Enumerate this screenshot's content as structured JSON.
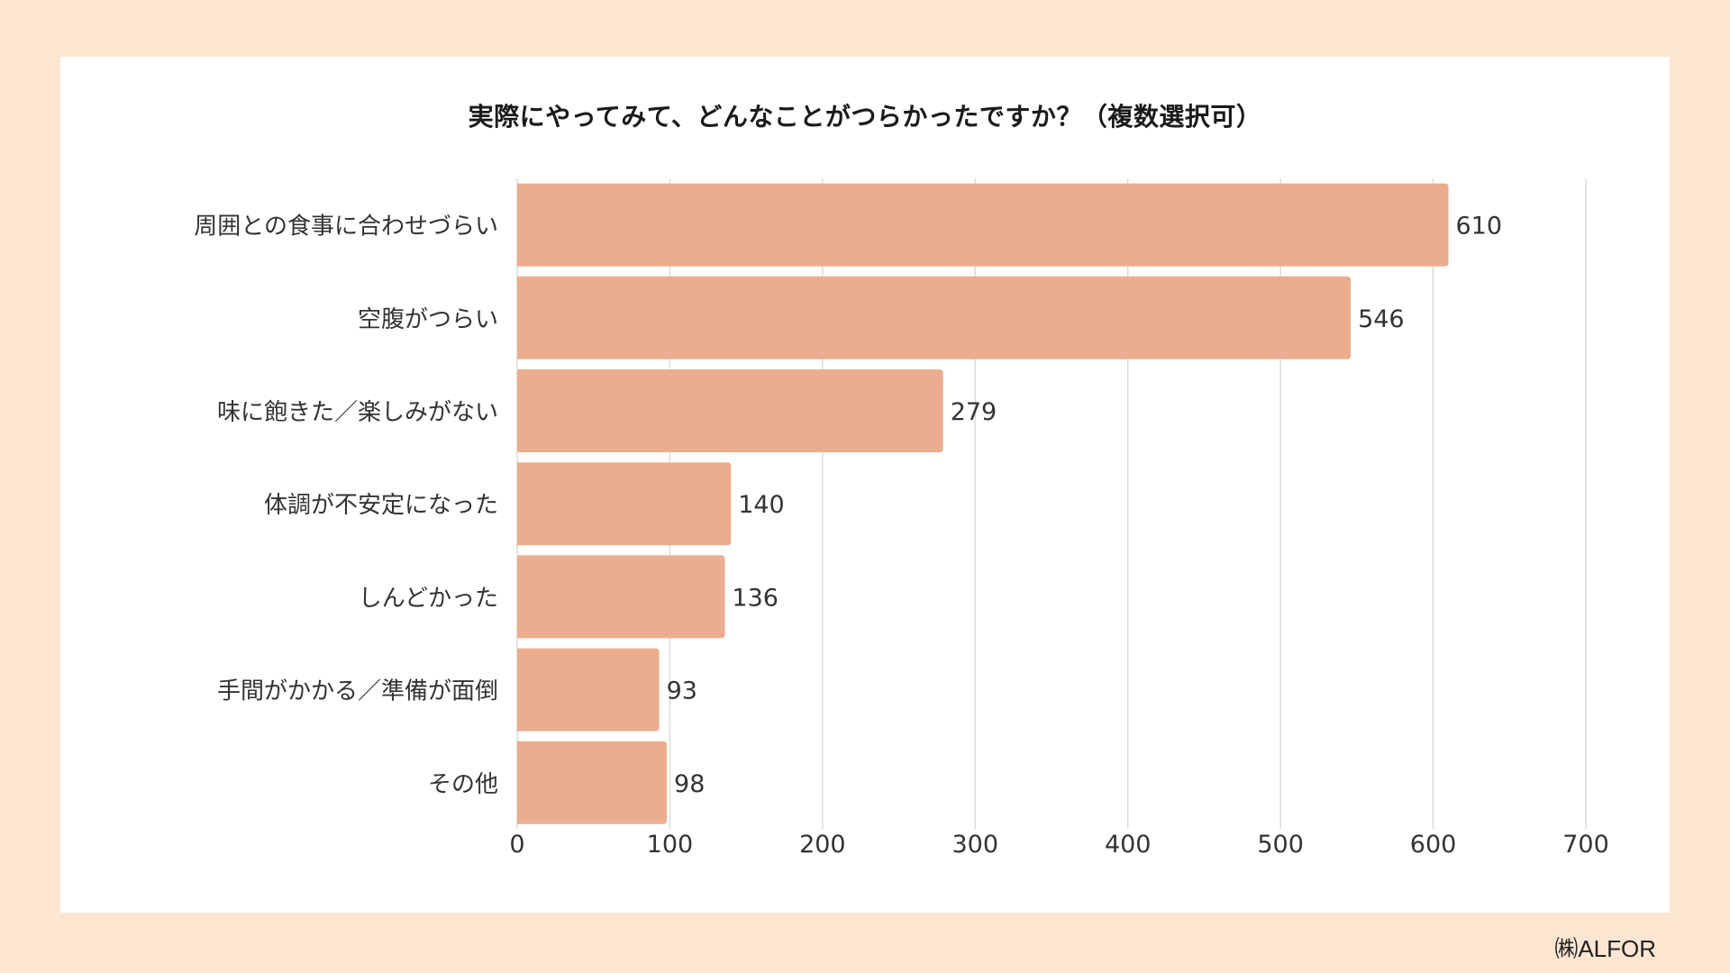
{
  "chart_data": {
    "type": "bar",
    "orientation": "horizontal",
    "title": "実際にやってみて、どんなことがつらかったですか？（複数選択可）",
    "categories": [
      "周囲との食事に合わせづらい",
      "空腹がつらい",
      "味に飽きた／楽しみがない",
      "体調が不安定になった",
      "しんどかった",
      "手間がかかる／準備が面倒",
      "その他"
    ],
    "values": [
      610,
      546,
      279,
      140,
      136,
      93,
      98
    ],
    "xlim": [
      0,
      700
    ],
    "xticks": [
      0,
      100,
      200,
      300,
      400,
      500,
      600,
      700
    ],
    "xlabel": "",
    "ylabel": "",
    "grid": true,
    "legend": "none",
    "bar_color": "#eaad8e"
  },
  "credit": "㈱ALFOR",
  "colors": {
    "background": "#fce6d2",
    "card": "#ffffff",
    "bar": "#eaad8e",
    "grid": "#dcdcdc",
    "text": "#333333"
  }
}
